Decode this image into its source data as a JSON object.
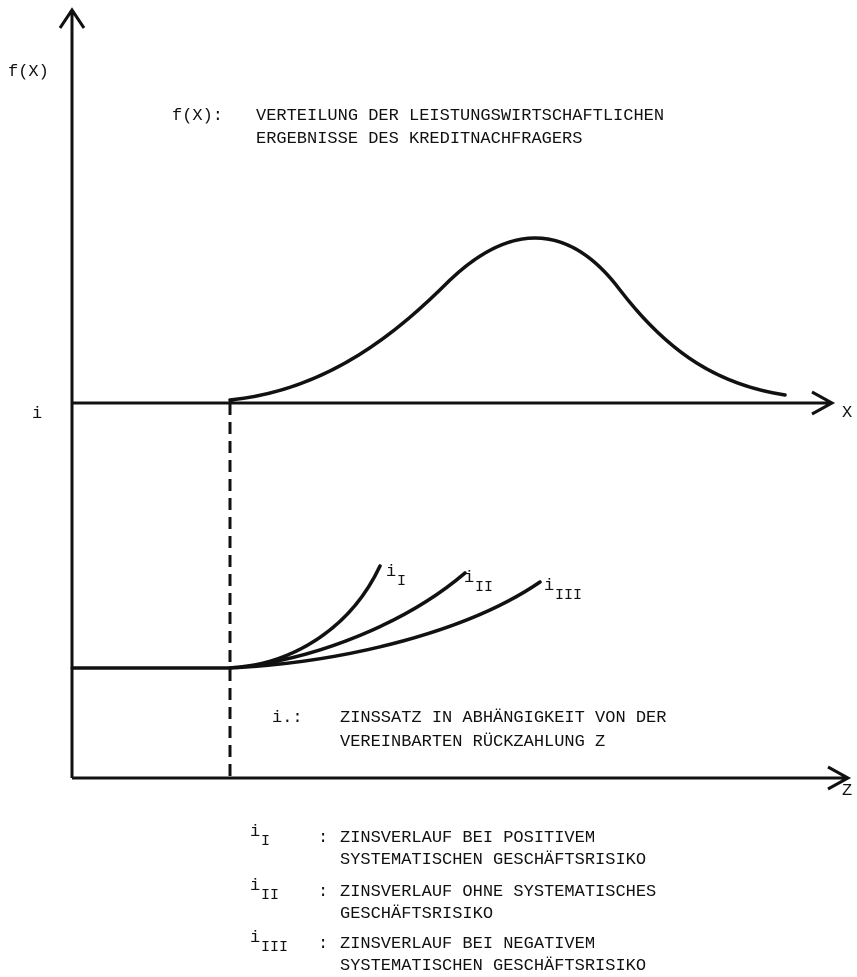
{
  "labels": {
    "fx_axis": "f(X)",
    "i_axis": "i",
    "x_axis": "X",
    "z_axis": "Z"
  },
  "annotations": {
    "f_definition": {
      "term": "f(X):",
      "lines": [
        "VERTEILUNG DER LEISTUNGSWIRTSCHAFTLICHEN",
        "ERGEBNISSE DES KREDITNACHFRAGERS"
      ]
    },
    "i_definition": {
      "term": "i.:",
      "lines": [
        "ZINSSATZ IN ABHÄNGIGKEIT VON DER",
        "VEREINBARTEN RÜCKZAHLUNG  Z"
      ]
    }
  },
  "curves": [
    {
      "base": "i",
      "sub": "I"
    },
    {
      "base": "i",
      "sub": "II"
    },
    {
      "base": "i",
      "sub": "III"
    }
  ],
  "legend": [
    {
      "base": "i",
      "sub": "I",
      "separator": ":",
      "lines": [
        "ZINSVERLAUF BEI POSITIVEM",
        "SYSTEMATISCHEN GESCHÄFTSRISIKO"
      ]
    },
    {
      "base": "i",
      "sub": "II",
      "separator": ":",
      "lines": [
        "ZINSVERLAUF OHNE SYSTEMATISCHES",
        "GESCHÄFTSRISIKO"
      ]
    },
    {
      "base": "i",
      "sub": "III",
      "separator": ":",
      "lines": [
        "ZINSVERLAUF BEI NEGATIVEM",
        "SYSTEMATISCHEN GESCHÄFTSRISIKO"
      ]
    }
  ]
}
